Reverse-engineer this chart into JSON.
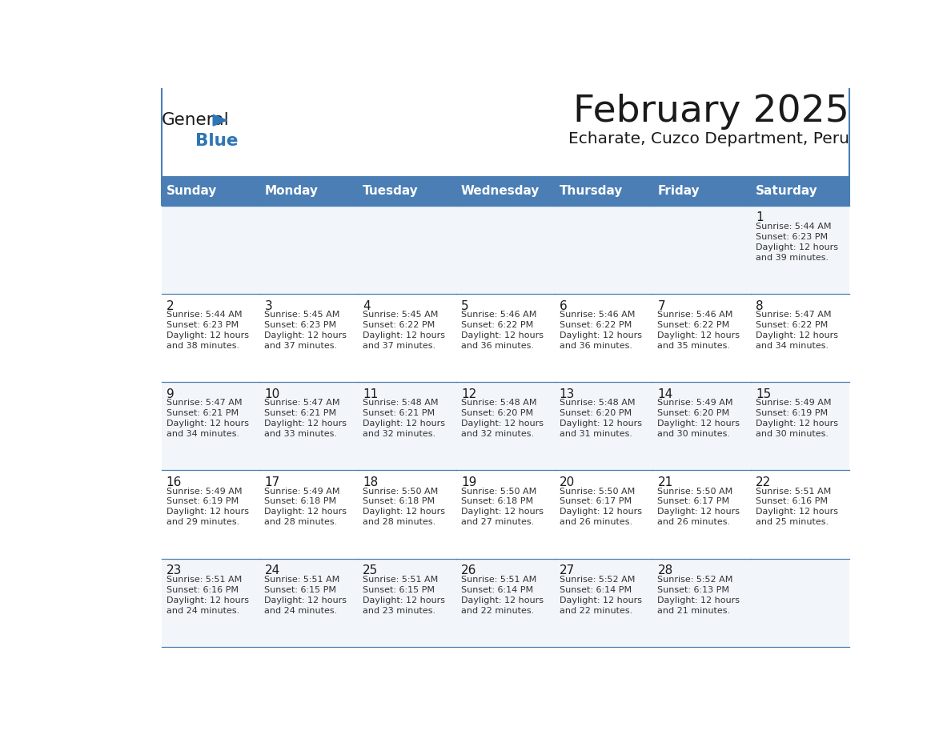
{
  "title": "February 2025",
  "subtitle": "Echarate, Cuzco Department, Peru",
  "header_bg": "#4a7eb5",
  "header_text": "#ffffff",
  "row_bg_odd": "#f2f6fa",
  "row_bg_even": "#ffffff",
  "border_color": "#4a7eb5",
  "day_headers": [
    "Sunday",
    "Monday",
    "Tuesday",
    "Wednesday",
    "Thursday",
    "Friday",
    "Saturday"
  ],
  "title_color": "#1a1a1a",
  "subtitle_color": "#1a1a1a",
  "day_num_color": "#1a1a1a",
  "cell_text_color": "#333333",
  "logo_general_color": "#1a1a1a",
  "logo_blue_color": "#2e75b6",
  "calendar_data": [
    [
      null,
      null,
      null,
      null,
      null,
      null,
      {
        "day": 1,
        "sunrise": "5:44 AM",
        "sunset": "6:23 PM",
        "daylight": "12 hours",
        "daylight2": "and 39 minutes."
      }
    ],
    [
      {
        "day": 2,
        "sunrise": "5:44 AM",
        "sunset": "6:23 PM",
        "daylight": "12 hours",
        "daylight2": "and 38 minutes."
      },
      {
        "day": 3,
        "sunrise": "5:45 AM",
        "sunset": "6:23 PM",
        "daylight": "12 hours",
        "daylight2": "and 37 minutes."
      },
      {
        "day": 4,
        "sunrise": "5:45 AM",
        "sunset": "6:22 PM",
        "daylight": "12 hours",
        "daylight2": "and 37 minutes."
      },
      {
        "day": 5,
        "sunrise": "5:46 AM",
        "sunset": "6:22 PM",
        "daylight": "12 hours",
        "daylight2": "and 36 minutes."
      },
      {
        "day": 6,
        "sunrise": "5:46 AM",
        "sunset": "6:22 PM",
        "daylight": "12 hours",
        "daylight2": "and 36 minutes."
      },
      {
        "day": 7,
        "sunrise": "5:46 AM",
        "sunset": "6:22 PM",
        "daylight": "12 hours",
        "daylight2": "and 35 minutes."
      },
      {
        "day": 8,
        "sunrise": "5:47 AM",
        "sunset": "6:22 PM",
        "daylight": "12 hours",
        "daylight2": "and 34 minutes."
      }
    ],
    [
      {
        "day": 9,
        "sunrise": "5:47 AM",
        "sunset": "6:21 PM",
        "daylight": "12 hours",
        "daylight2": "and 34 minutes."
      },
      {
        "day": 10,
        "sunrise": "5:47 AM",
        "sunset": "6:21 PM",
        "daylight": "12 hours",
        "daylight2": "and 33 minutes."
      },
      {
        "day": 11,
        "sunrise": "5:48 AM",
        "sunset": "6:21 PM",
        "daylight": "12 hours",
        "daylight2": "and 32 minutes."
      },
      {
        "day": 12,
        "sunrise": "5:48 AM",
        "sunset": "6:20 PM",
        "daylight": "12 hours",
        "daylight2": "and 32 minutes."
      },
      {
        "day": 13,
        "sunrise": "5:48 AM",
        "sunset": "6:20 PM",
        "daylight": "12 hours",
        "daylight2": "and 31 minutes."
      },
      {
        "day": 14,
        "sunrise": "5:49 AM",
        "sunset": "6:20 PM",
        "daylight": "12 hours",
        "daylight2": "and 30 minutes."
      },
      {
        "day": 15,
        "sunrise": "5:49 AM",
        "sunset": "6:19 PM",
        "daylight": "12 hours",
        "daylight2": "and 30 minutes."
      }
    ],
    [
      {
        "day": 16,
        "sunrise": "5:49 AM",
        "sunset": "6:19 PM",
        "daylight": "12 hours",
        "daylight2": "and 29 minutes."
      },
      {
        "day": 17,
        "sunrise": "5:49 AM",
        "sunset": "6:18 PM",
        "daylight": "12 hours",
        "daylight2": "and 28 minutes."
      },
      {
        "day": 18,
        "sunrise": "5:50 AM",
        "sunset": "6:18 PM",
        "daylight": "12 hours",
        "daylight2": "and 28 minutes."
      },
      {
        "day": 19,
        "sunrise": "5:50 AM",
        "sunset": "6:18 PM",
        "daylight": "12 hours",
        "daylight2": "and 27 minutes."
      },
      {
        "day": 20,
        "sunrise": "5:50 AM",
        "sunset": "6:17 PM",
        "daylight": "12 hours",
        "daylight2": "and 26 minutes."
      },
      {
        "day": 21,
        "sunrise": "5:50 AM",
        "sunset": "6:17 PM",
        "daylight": "12 hours",
        "daylight2": "and 26 minutes."
      },
      {
        "day": 22,
        "sunrise": "5:51 AM",
        "sunset": "6:16 PM",
        "daylight": "12 hours",
        "daylight2": "and 25 minutes."
      }
    ],
    [
      {
        "day": 23,
        "sunrise": "5:51 AM",
        "sunset": "6:16 PM",
        "daylight": "12 hours",
        "daylight2": "and 24 minutes."
      },
      {
        "day": 24,
        "sunrise": "5:51 AM",
        "sunset": "6:15 PM",
        "daylight": "12 hours",
        "daylight2": "and 24 minutes."
      },
      {
        "day": 25,
        "sunrise": "5:51 AM",
        "sunset": "6:15 PM",
        "daylight": "12 hours",
        "daylight2": "and 23 minutes."
      },
      {
        "day": 26,
        "sunrise": "5:51 AM",
        "sunset": "6:14 PM",
        "daylight": "12 hours",
        "daylight2": "and 22 minutes."
      },
      {
        "day": 27,
        "sunrise": "5:52 AM",
        "sunset": "6:14 PM",
        "daylight": "12 hours",
        "daylight2": "and 22 minutes."
      },
      {
        "day": 28,
        "sunrise": "5:52 AM",
        "sunset": "6:13 PM",
        "daylight": "12 hours",
        "daylight2": "and 21 minutes."
      },
      null
    ]
  ]
}
